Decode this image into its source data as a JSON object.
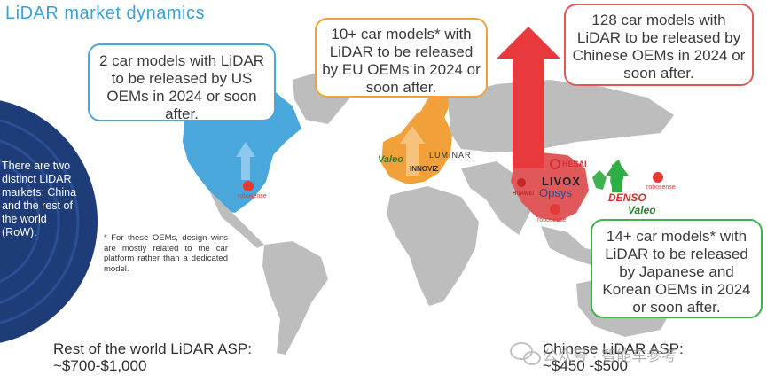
{
  "title": "LiDAR market dynamics",
  "sidebar": {
    "text": "There are two distinct LiDAR markets: China and the rest of the world (RoW)."
  },
  "callouts": {
    "us": "2 car models with LiDAR to be released by US OEMs in 2024 or soon after.",
    "eu": "10+ car models* with LiDAR to be released by EU OEMs in 2024 or soon after.",
    "china": "128 car models with LiDAR to be released by Chinese OEMs in 2024 or soon after.",
    "japan_korea": "14+ car models* with LiDAR to be released by Japanese and Korean OEMs in 2024 or soon after."
  },
  "footnote": "* For these OEMs, design wins are mostly related to the car platform rather than a dedicated model.",
  "asp": {
    "row_label": "Rest of the world LiDAR ASP:",
    "row_value": "~$700-$1,000",
    "china_label": "Chinese LiDAR ASP:",
    "china_value": "~$450 -$500"
  },
  "logos": {
    "valeo_eu": "Valeo",
    "innoviz": "INNOVIZ",
    "luminar": "LUMINAR",
    "livox": "LIVOX",
    "opsys": "Opsys",
    "hesai": "HESAI",
    "huawei": "HUAWEI",
    "robosense_cn": "robosense",
    "robosense_us": "robosense",
    "robosense_jp": "robosense",
    "denso": "DENSO",
    "valeo_jp": "Valeo"
  },
  "watermark": "公众号 · 智能车参考",
  "colors": {
    "title": "#3aa0d8",
    "us": "#4aa7dc",
    "eu": "#f2a03a",
    "china": "#e0585a",
    "japan_korea": "#3fb14f",
    "land": "#bdbdbd",
    "sidebar": "#1d3c78"
  }
}
